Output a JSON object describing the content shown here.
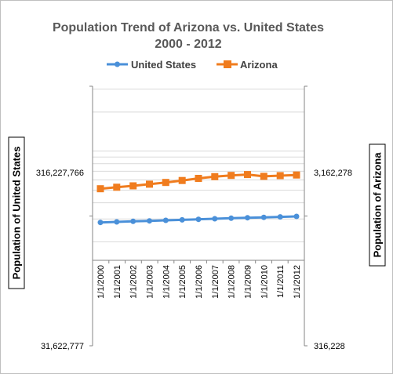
{
  "chart_data": {
    "type": "line",
    "title_line1": "Population Trend of Arizona vs. United States",
    "title_line2": "2000 - 2012",
    "categories": [
      "1/1/2000",
      "1/1/2001",
      "1/1/2002",
      "1/1/2003",
      "1/1/2004",
      "1/1/2005",
      "1/1/2006",
      "1/1/2007",
      "1/1/2008",
      "1/1/2009",
      "1/1/2010",
      "1/1/2011",
      "1/1/2012"
    ],
    "series": [
      {
        "name": "United States",
        "axis": "left",
        "color": "#4a90d9",
        "marker": "circle",
        "values": [
          282160000,
          284970000,
          287630000,
          290110000,
          292810000,
          295520000,
          298380000,
          301230000,
          304090000,
          306770000,
          308750000,
          311590000,
          313910000
        ]
      },
      {
        "name": "Arizona",
        "axis": "right",
        "color": "#f07c1e",
        "marker": "square",
        "values": [
          5130000,
          5270000,
          5400000,
          5560000,
          5740000,
          5940000,
          6170000,
          6360000,
          6500000,
          6600000,
          6390000,
          6470000,
          6550000
        ]
      }
    ],
    "y_left": {
      "label": "Population of United States",
      "scale": "log",
      "min": 31622777,
      "max": 3162277660,
      "tick_labels": [
        {
          "value": 316227766,
          "label": "316,227,766"
        },
        {
          "value": 31622777,
          "label": "31,622,777"
        }
      ]
    },
    "y_right": {
      "label": "Population of Arizona",
      "scale": "log",
      "min": 316228,
      "max": 31622777,
      "tick_labels": [
        {
          "value": 3162278,
          "label": "3,162,278"
        },
        {
          "value": 316228,
          "label": "316,228"
        }
      ]
    },
    "legend_position": "top",
    "grid": true
  }
}
